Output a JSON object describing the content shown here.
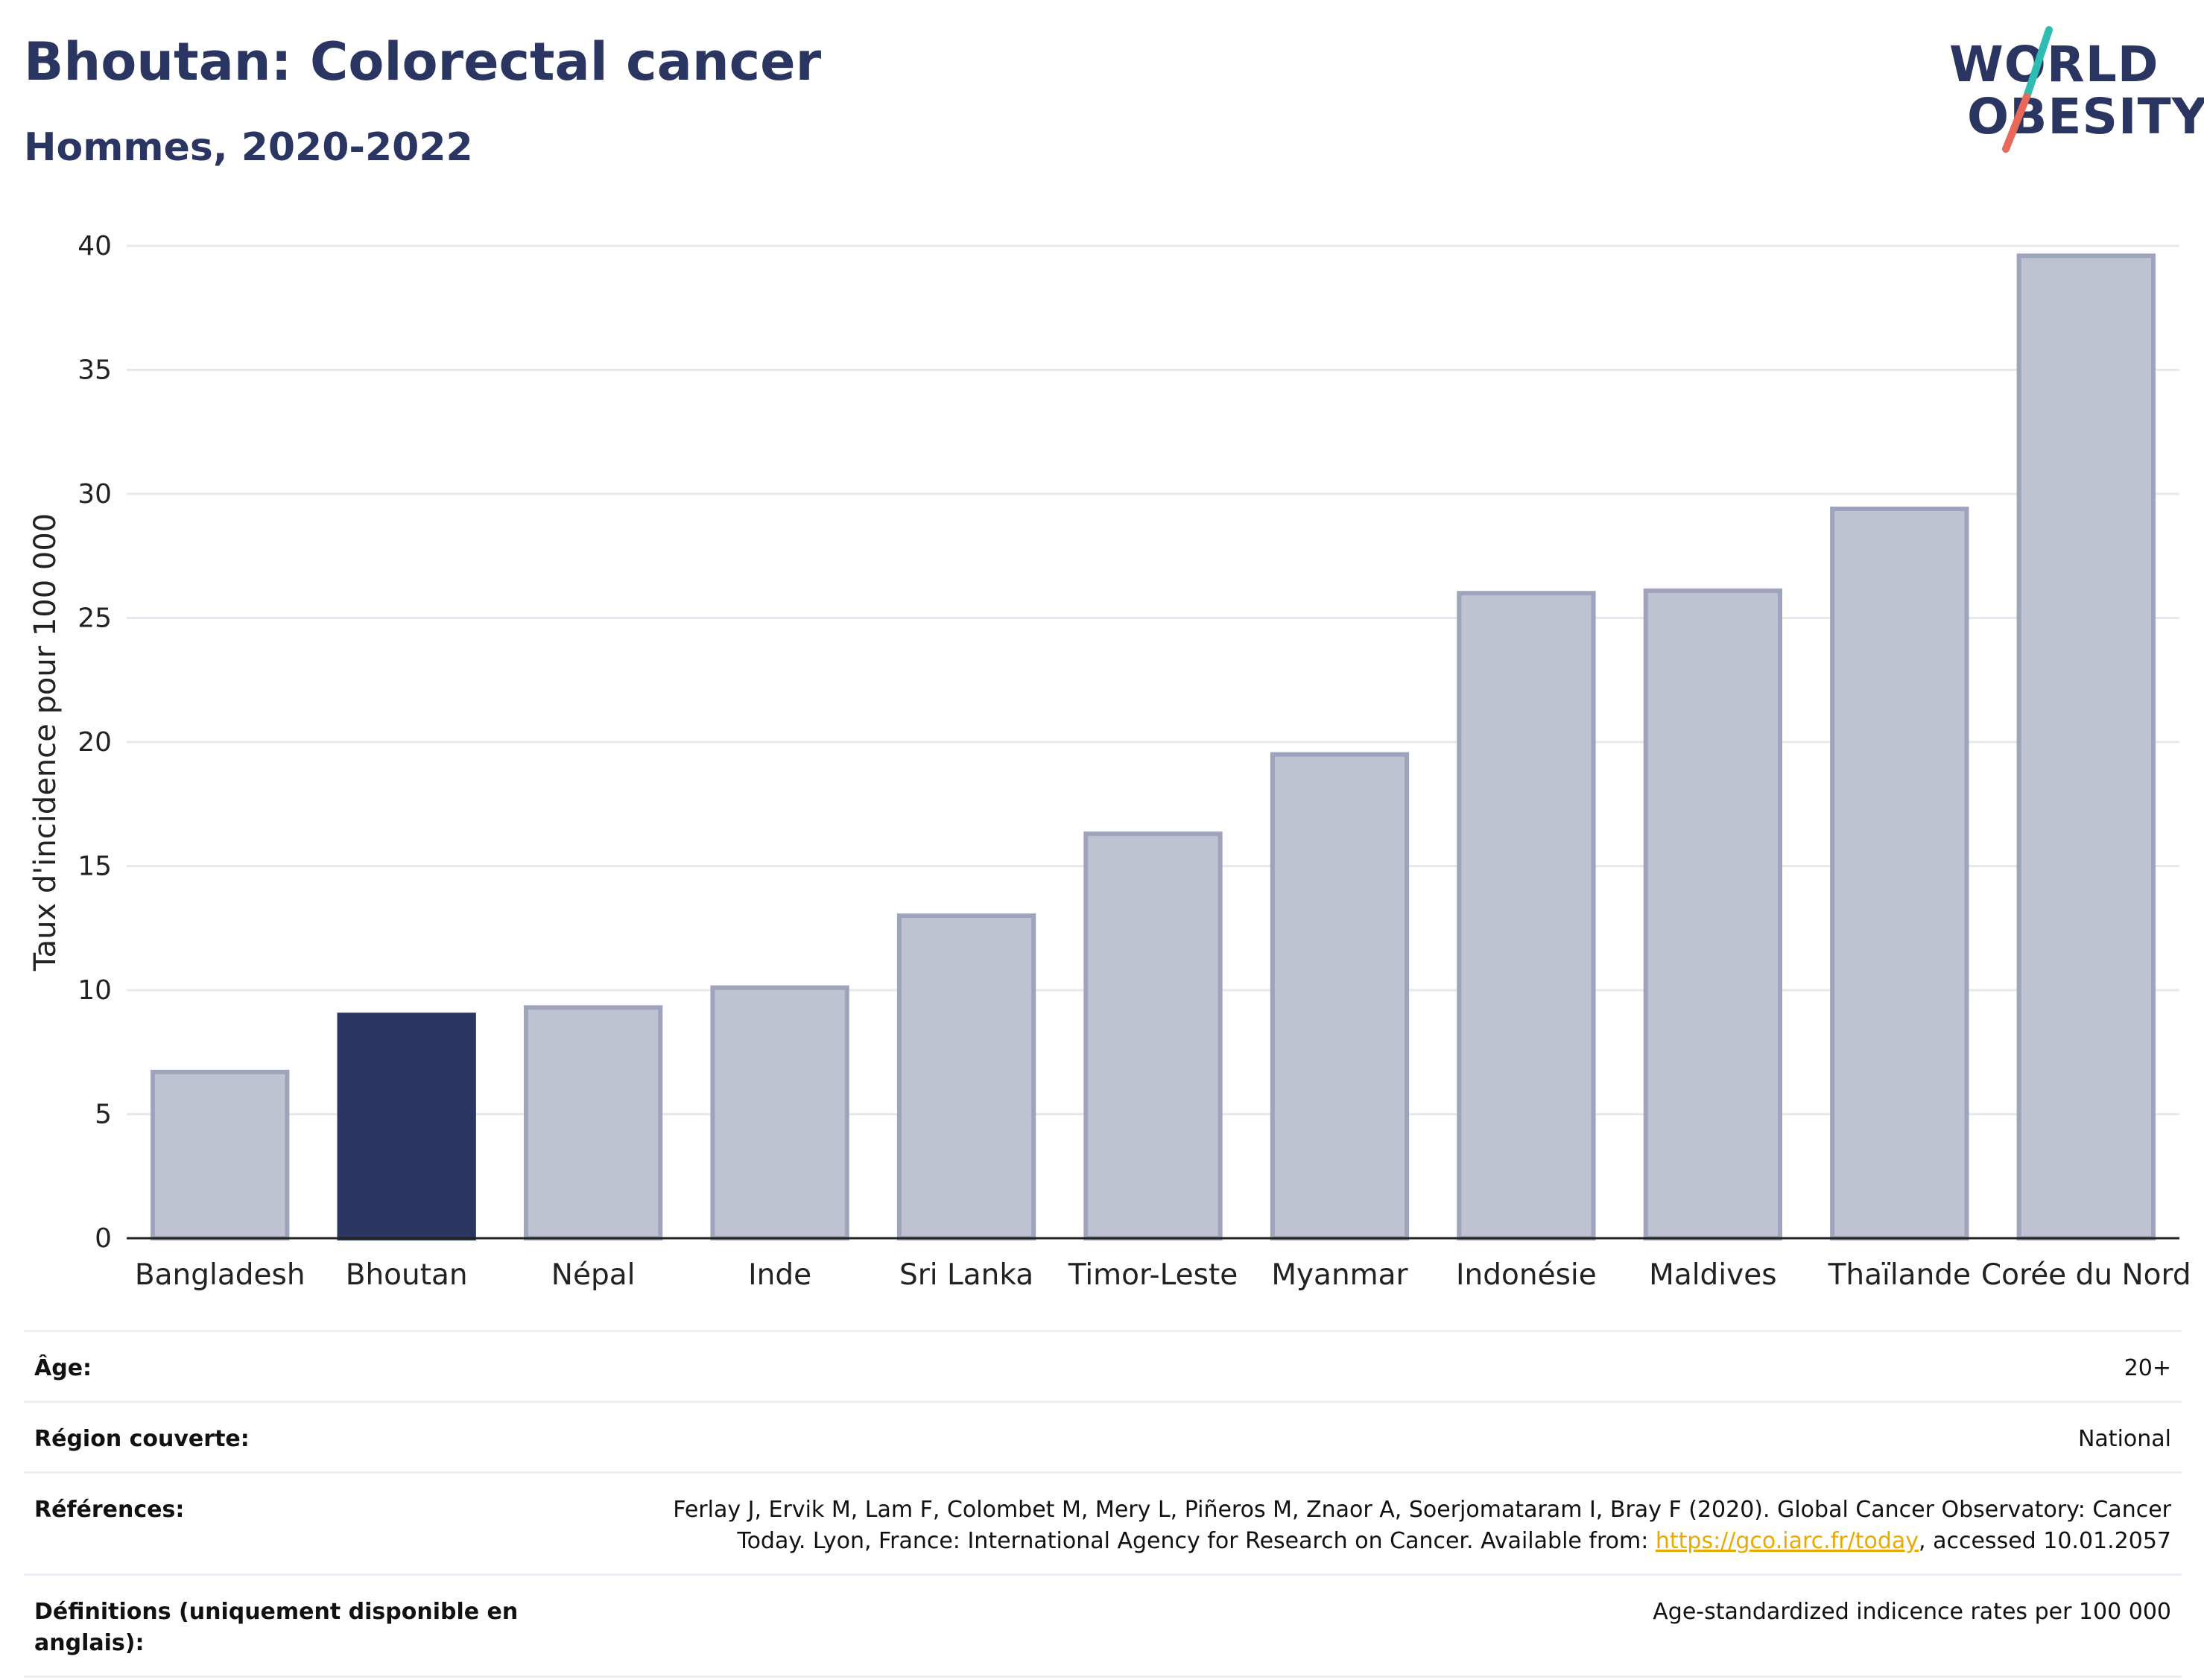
{
  "header": {
    "title": "Bhoutan: Colorectal cancer",
    "subtitle": "Hommes, 2020-2022"
  },
  "logo": {
    "line1": "WORLD",
    "line2": "OBESITY",
    "accent_colors": [
      "#2ebdb3",
      "#e8685a"
    ]
  },
  "chart_data": {
    "type": "bar",
    "categories": [
      "Bangladesh",
      "Bhoutan",
      "Népal",
      "Inde",
      "Sri Lanka",
      "Timor-Leste",
      "Myanmar",
      "Indonésie",
      "Maldives",
      "Thaïlande",
      "Corée du Nord"
    ],
    "values": [
      6.7,
      9.0,
      9.3,
      10.1,
      13.0,
      16.3,
      19.5,
      26.0,
      26.1,
      29.4,
      39.6
    ],
    "highlight": "Bhoutan",
    "ylabel": "Taux d'incidence pour 100 000",
    "ylim": [
      0,
      40
    ],
    "yticks": [
      0,
      5,
      10,
      15,
      20,
      25,
      30,
      35,
      40
    ],
    "grid": true,
    "colors": {
      "highlight": "#2b3562",
      "other": "#bfc3d1",
      "other_border": "#9ea4bb"
    }
  },
  "meta": {
    "age_label": "Âge:",
    "age_value": "20+",
    "region_label": "Région couverte:",
    "region_value": "National",
    "references_label": "Références:",
    "references_text_1": "Ferlay J, Ervik M, Lam F, Colombet M, Mery L, Piñeros M, Znaor A, Soerjomataram I, Bray F (2020). Global Cancer Observatory: Cancer Today. Lyon, France: International Agency for Research on Cancer. Available from: ",
    "references_link": "https://gco.iarc.fr/today",
    "references_text_2": ", accessed 10.01.2057",
    "definitions_label": "Définitions (uniquement disponible en anglais):",
    "definitions_value": "Age-standardized indicence rates per 100 000"
  }
}
